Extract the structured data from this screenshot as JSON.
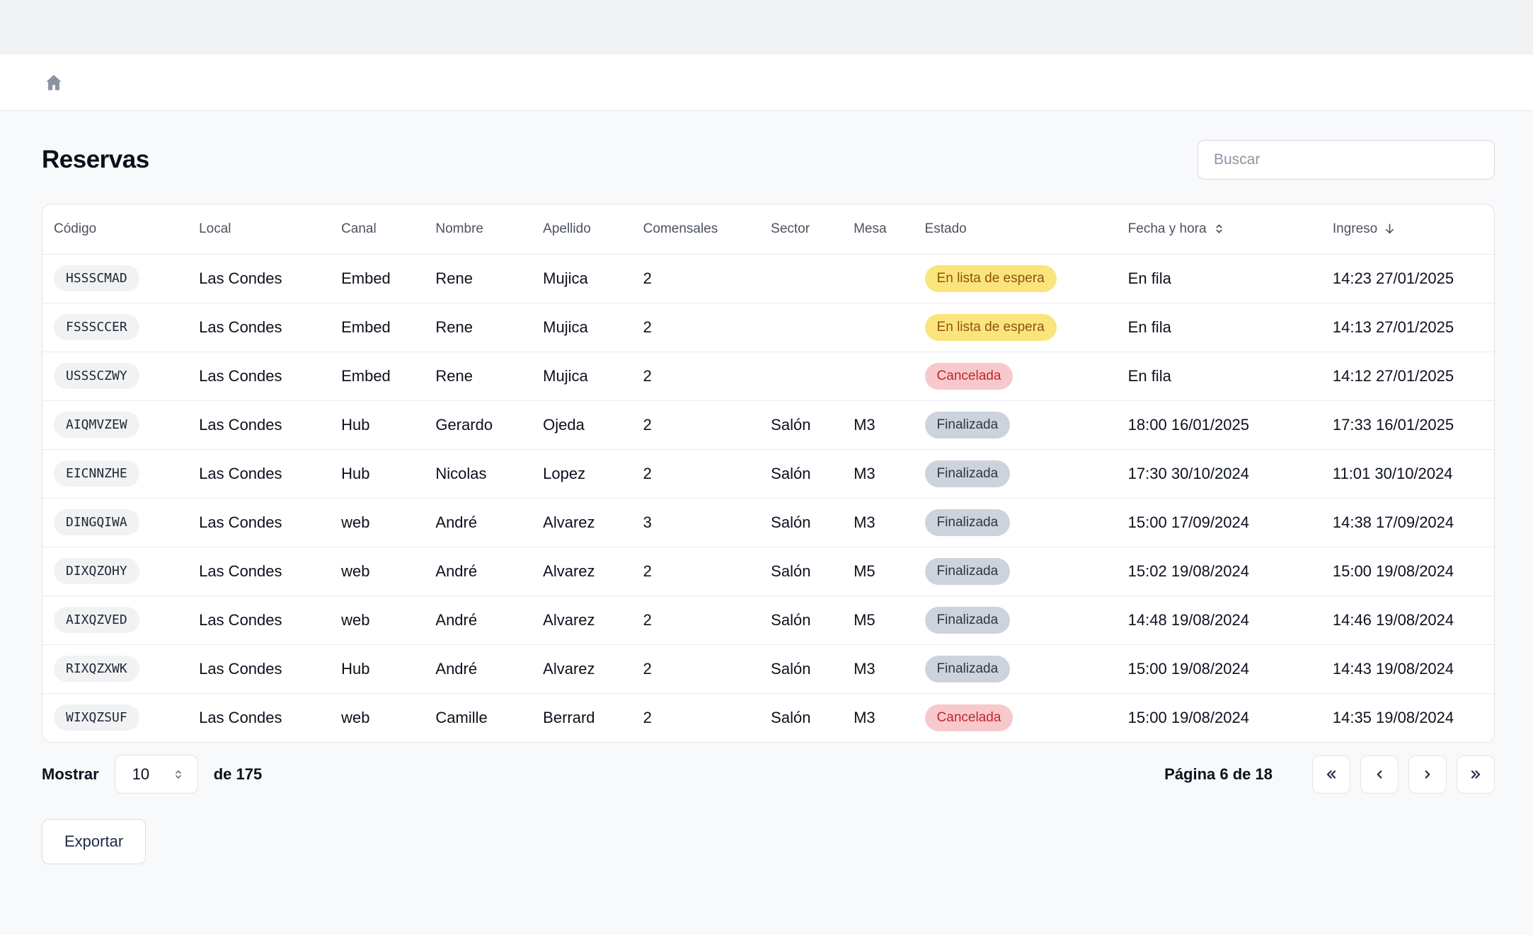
{
  "page": {
    "title": "Reservas"
  },
  "header": {
    "home_icon": "home-icon"
  },
  "search": {
    "placeholder": "Buscar",
    "value": ""
  },
  "table": {
    "columns": [
      {
        "key": "codigo",
        "label": "Código"
      },
      {
        "key": "local",
        "label": "Local"
      },
      {
        "key": "canal",
        "label": "Canal"
      },
      {
        "key": "nombre",
        "label": "Nombre"
      },
      {
        "key": "apellido",
        "label": "Apellido"
      },
      {
        "key": "comensales",
        "label": "Comensales"
      },
      {
        "key": "sector",
        "label": "Sector"
      },
      {
        "key": "mesa",
        "label": "Mesa"
      },
      {
        "key": "estado",
        "label": "Estado"
      },
      {
        "key": "fecha",
        "label": "Fecha y hora",
        "sort_icon": "chevrons-up-down-icon"
      },
      {
        "key": "ingreso",
        "label": "Ingreso",
        "sort_icon": "arrow-down-icon"
      }
    ],
    "rows": [
      {
        "codigo": "HSSSCMAD",
        "local": "Las Condes",
        "canal": "Embed",
        "nombre": "Rene",
        "apellido": "Mujica",
        "comensales": "2",
        "sector": "",
        "mesa": "",
        "estado": {
          "label": "En lista de espera",
          "type": "waiting"
        },
        "fecha": "En fila",
        "ingreso": "14:23 27/01/2025"
      },
      {
        "codigo": "FSSSCCER",
        "local": "Las Condes",
        "canal": "Embed",
        "nombre": "Rene",
        "apellido": "Mujica",
        "comensales": "2",
        "sector": "",
        "mesa": "",
        "estado": {
          "label": "En lista de espera",
          "type": "waiting"
        },
        "fecha": "En fila",
        "ingreso": "14:13 27/01/2025"
      },
      {
        "codigo": "USSSCZWY",
        "local": "Las Condes",
        "canal": "Embed",
        "nombre": "Rene",
        "apellido": "Mujica",
        "comensales": "2",
        "sector": "",
        "mesa": "",
        "estado": {
          "label": "Cancelada",
          "type": "canceled"
        },
        "fecha": "En fila",
        "ingreso": "14:12 27/01/2025"
      },
      {
        "codigo": "AIQMVZEW",
        "local": "Las Condes",
        "canal": "Hub",
        "nombre": "Gerardo",
        "apellido": "Ojeda",
        "comensales": "2",
        "sector": "Salón",
        "mesa": "M3",
        "estado": {
          "label": "Finalizada",
          "type": "done"
        },
        "fecha": "18:00 16/01/2025",
        "ingreso": "17:33 16/01/2025"
      },
      {
        "codigo": "EICNNZHE",
        "local": "Las Condes",
        "canal": "Hub",
        "nombre": "Nicolas",
        "apellido": "Lopez",
        "comensales": "2",
        "sector": "Salón",
        "mesa": "M3",
        "estado": {
          "label": "Finalizada",
          "type": "done"
        },
        "fecha": "17:30 30/10/2024",
        "ingreso": "11:01 30/10/2024"
      },
      {
        "codigo": "DINGQIWA",
        "local": "Las Condes",
        "canal": "web",
        "nombre": "André",
        "apellido": "Alvarez",
        "comensales": "3",
        "sector": "Salón",
        "mesa": "M3",
        "estado": {
          "label": "Finalizada",
          "type": "done"
        },
        "fecha": "15:00 17/09/2024",
        "ingreso": "14:38 17/09/2024"
      },
      {
        "codigo": "DIXQZOHY",
        "local": "Las Condes",
        "canal": "web",
        "nombre": "André",
        "apellido": "Alvarez",
        "comensales": "2",
        "sector": "Salón",
        "mesa": "M5",
        "estado": {
          "label": "Finalizada",
          "type": "done"
        },
        "fecha": "15:02 19/08/2024",
        "ingreso": "15:00 19/08/2024"
      },
      {
        "codigo": "AIXQZVED",
        "local": "Las Condes",
        "canal": "web",
        "nombre": "André",
        "apellido": "Alvarez",
        "comensales": "2",
        "sector": "Salón",
        "mesa": "M5",
        "estado": {
          "label": "Finalizada",
          "type": "done"
        },
        "fecha": "14:48 19/08/2024",
        "ingreso": "14:46 19/08/2024"
      },
      {
        "codigo": "RIXQZXWK",
        "local": "Las Condes",
        "canal": "Hub",
        "nombre": "André",
        "apellido": "Alvarez",
        "comensales": "2",
        "sector": "Salón",
        "mesa": "M3",
        "estado": {
          "label": "Finalizada",
          "type": "done"
        },
        "fecha": "15:00 19/08/2024",
        "ingreso": "14:43 19/08/2024"
      },
      {
        "codigo": "WIXQZSUF",
        "local": "Las Condes",
        "canal": "web",
        "nombre": "Camille",
        "apellido": "Berrard",
        "comensales": "2",
        "sector": "Salón",
        "mesa": "M3",
        "estado": {
          "label": "Cancelada",
          "type": "canceled"
        },
        "fecha": "15:00 19/08/2024",
        "ingreso": "14:35 19/08/2024"
      }
    ]
  },
  "pagination": {
    "show_label": "Mostrar",
    "page_size": "10",
    "total_label": "de 175",
    "page_label": "Página 6 de 18",
    "buttons": [
      {
        "name": "first-page-button",
        "icon": "chevrons-left-icon"
      },
      {
        "name": "prev-page-button",
        "icon": "chevron-left-icon"
      },
      {
        "name": "next-page-button",
        "icon": "chevron-right-icon"
      },
      {
        "name": "last-page-button",
        "icon": "chevrons-right-icon"
      }
    ]
  },
  "export": {
    "label": "Exportar"
  },
  "colors": {
    "page_bg": "#F8F9FB",
    "top_band_bg": "#F1F2F4",
    "badge_waiting_bg": "#FAE57D",
    "badge_waiting_text": "#91530B",
    "badge_done_bg": "#CDD3DC",
    "badge_done_text": "#2E3644",
    "badge_canceled_bg": "#F8C9CC",
    "badge_canceled_text": "#C2262D",
    "code_pill_bg": "#F1F2F4",
    "home_icon_color": "#8A93A3"
  }
}
